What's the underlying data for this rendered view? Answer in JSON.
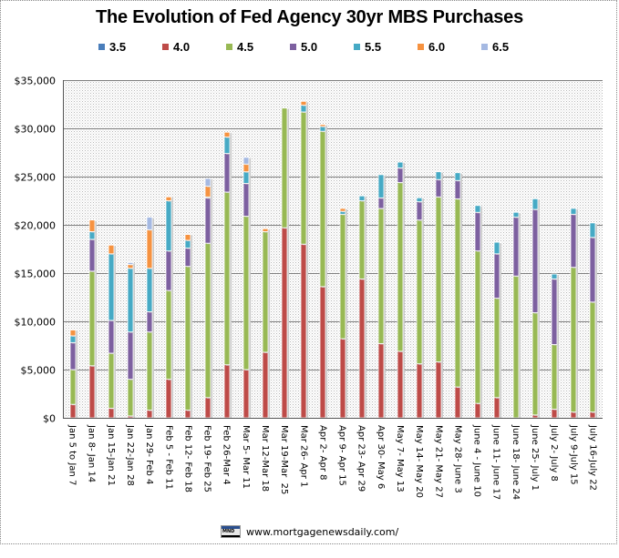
{
  "chart_data": {
    "type": "bar",
    "stacked": true,
    "title": "The Evolution of Fed Agency 30yr MBS Purchases",
    "xlabel": "",
    "ylabel": "",
    "ylim": [
      0,
      35000
    ],
    "yticks": [
      0,
      5000,
      10000,
      15000,
      20000,
      25000,
      30000,
      35000
    ],
    "ytick_labels": [
      "$0",
      "$5,000",
      "$10,000",
      "$15,000",
      "$20,000",
      "$25,000",
      "$30,000",
      "$35,000"
    ],
    "grid": true,
    "legend_position": "top",
    "categories": [
      "Jan 5 to Jan 7",
      "Jan 8- Jan 14",
      "Jan 15-Jan 21",
      "Jan 22-Jan 28",
      "Jan 29- Feb 4",
      "Feb 5 - Feb 11",
      "Feb 12- Feb 18",
      "Feb 19- Feb 25",
      "Feb 26-Mar 4",
      "Mar 5- Mar 11",
      "Mar 12-Mar 18",
      "Mar 19-Mar  25",
      "Mar 26- Apr 1",
      "Apr 2- Apr 8",
      "Apr 9- Apr 15",
      "Apr 23- Apr 29",
      "Apr 30- May 6",
      "May 7- May 13",
      "May 14- May 20",
      "May 21- May 27",
      "May 28- June 3",
      "June 4 - June 10",
      "June 11- June 17",
      "June 18- June 24",
      "June 25- July 1",
      "July 2- July 8",
      "July 9-July 15",
      "July 16-July 22"
    ],
    "series": [
      {
        "name": "3.5",
        "color": "#4a7ebb",
        "values": [
          0,
          0,
          0,
          0,
          0,
          0,
          0,
          0,
          0,
          0,
          0,
          0,
          0,
          0,
          0,
          0,
          0,
          0,
          0,
          0,
          0,
          0,
          0,
          0,
          0,
          0,
          0,
          0
        ]
      },
      {
        "name": "4.0",
        "color": "#be4b48",
        "values": [
          1400,
          5400,
          1000,
          200,
          800,
          4000,
          800,
          2100,
          5500,
          5000,
          6800,
          19700,
          18000,
          13600,
          8200,
          14400,
          7700,
          6900,
          5600,
          5800,
          3200,
          1500,
          2100,
          0,
          300,
          900,
          600,
          600
        ]
      },
      {
        "name": "4.5",
        "color": "#98b954",
        "values": [
          3600,
          9800,
          5700,
          3800,
          8100,
          9200,
          14900,
          16000,
          17900,
          15900,
          12500,
          12400,
          13700,
          16100,
          12900,
          8100,
          14000,
          17500,
          14900,
          17100,
          19500,
          15800,
          10300,
          14700,
          10600,
          6700,
          15000,
          11400
        ]
      },
      {
        "name": "5.0",
        "color": "#7d60a0",
        "values": [
          2800,
          3300,
          3400,
          4900,
          2100,
          4100,
          1900,
          4700,
          4000,
          3400,
          0,
          0,
          0,
          0,
          0,
          0,
          1100,
          1500,
          1900,
          1800,
          1900,
          4000,
          4600,
          6100,
          10700,
          6800,
          5500,
          6700
        ]
      },
      {
        "name": "5.5",
        "color": "#46aac5",
        "values": [
          700,
          800,
          6900,
          6600,
          4500,
          5200,
          800,
          100,
          1700,
          1200,
          0,
          0,
          700,
          500,
          300,
          500,
          2400,
          600,
          400,
          800,
          800,
          700,
          1200,
          500,
          1100,
          500,
          600,
          1500
        ]
      },
      {
        "name": "6.0",
        "color": "#f69240",
        "values": [
          600,
          1200,
          900,
          400,
          4000,
          400,
          600,
          1100,
          500,
          800,
          300,
          0,
          400,
          200,
          300,
          0,
          0,
          0,
          0,
          0,
          0,
          0,
          0,
          0,
          0,
          0,
          0,
          0
        ]
      },
      {
        "name": "6.5",
        "color": "#a5b9e2",
        "values": [
          0,
          0,
          0,
          200,
          1300,
          0,
          0,
          800,
          0,
          700,
          0,
          0,
          0,
          0,
          0,
          0,
          0,
          0,
          0,
          0,
          0,
          0,
          0,
          0,
          0,
          0,
          0,
          0
        ]
      }
    ]
  },
  "footer": {
    "logo_text": "MND",
    "url": "www.mortgagenewsdaily.com/"
  }
}
